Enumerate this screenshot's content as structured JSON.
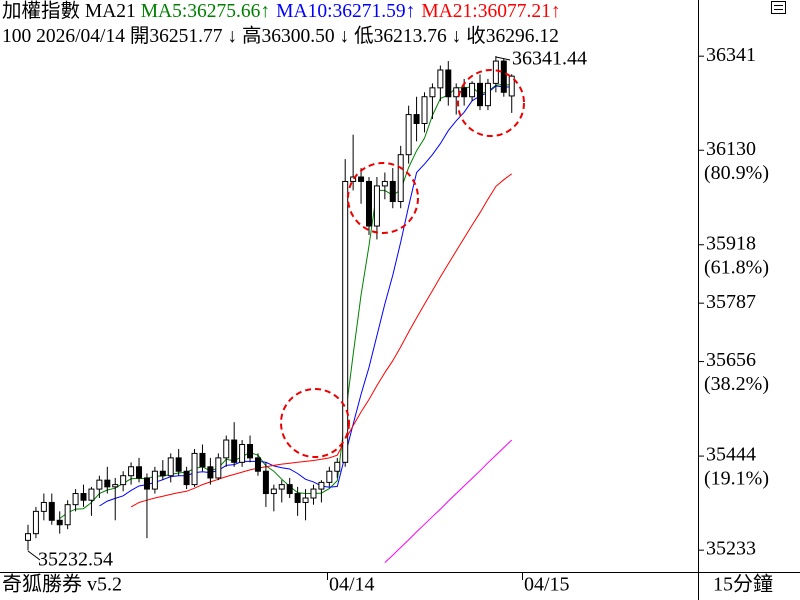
{
  "chart_data": {
    "type": "candlestick",
    "title": "加權指數",
    "indicator": "MA21",
    "trend_arrow": "↑",
    "info": "100 2026/04/14 開36251.77 ↓ 高36300.50 ↓ 低36213.76 ↓ 收36296.12",
    "footer_left": "奇狐勝券 v5.2",
    "period": "15分鐘",
    "x_labels": [
      "04/14",
      "04/15"
    ],
    "annotations": [
      "36341.44",
      "35232.54"
    ],
    "ylim": [
      35184,
      36467
    ],
    "yticks": [
      36341,
      36130,
      35918,
      35787,
      35656,
      35444,
      35233
    ],
    "fib_labels": [
      {
        "value": 36130,
        "label": "(80.9%)"
      },
      {
        "value": 35918,
        "label": "(61.8%)"
      },
      {
        "value": 35656,
        "label": "(38.2%)"
      },
      {
        "value": 35444,
        "label": "(19.1%)"
      }
    ],
    "up_color": "#ffffff",
    "down_color": "#000000",
    "open": [
      35255,
      35270,
      35320,
      35340,
      35300,
      35290,
      35335,
      35360,
      35345,
      35370,
      35390,
      35375,
      35380,
      35400,
      35420,
      35395,
      35370,
      35410,
      35400,
      35440,
      35410,
      35380,
      35450,
      35420,
      35395,
      35440,
      35480,
      35430,
      35470,
      35440,
      35410,
      35360,
      35370,
      35380,
      35360,
      35340,
      35350,
      35370,
      35385,
      35410,
      35430,
      36060,
      36070,
      36060,
      35960,
      36050,
      36060,
      36015,
      36120,
      36210,
      36190,
      36250,
      36270,
      36310,
      36250,
      36270,
      36250,
      36280,
      36230,
      36280,
      36330,
      36251.77
    ],
    "high": [
      35290,
      35330,
      35360,
      35360,
      35320,
      35345,
      35370,
      35380,
      35375,
      35400,
      35420,
      35395,
      35410,
      35430,
      35440,
      35405,
      35420,
      35435,
      35450,
      35460,
      35420,
      35460,
      35470,
      35440,
      35450,
      35490,
      35520,
      35480,
      35490,
      35450,
      35430,
      35380,
      35390,
      35395,
      35375,
      35370,
      35380,
      35390,
      35420,
      35440,
      36110,
      36165,
      36090,
      36070,
      36070,
      36080,
      36090,
      36140,
      36230,
      36250,
      36260,
      36280,
      36320,
      36330,
      36280,
      36290,
      36285,
      36300,
      36290,
      36341.44,
      36335,
      36300.5
    ],
    "low": [
      35232.54,
      35260,
      35300,
      35290,
      35270,
      35280,
      35320,
      35330,
      35310,
      35350,
      35360,
      35300,
      35365,
      35380,
      35385,
      35260,
      35360,
      35390,
      35385,
      35400,
      35370,
      35375,
      35410,
      35380,
      35390,
      35420,
      35420,
      35420,
      35430,
      35400,
      35330,
      35320,
      35340,
      35350,
      35310,
      35300,
      35335,
      35340,
      35375,
      35395,
      35420,
      36040,
      36010,
      35940,
      35930,
      36020,
      36000,
      36000,
      36100,
      36150,
      36170,
      36200,
      36240,
      36230,
      36210,
      36230,
      36240,
      36220,
      36220,
      36260,
      36250,
      36213.76
    ],
    "close": [
      35270,
      35320,
      35340,
      35300,
      35290,
      35335,
      35360,
      35345,
      35370,
      35390,
      35375,
      35380,
      35400,
      35420,
      35395,
      35370,
      35410,
      35400,
      35440,
      35410,
      35380,
      35450,
      35420,
      35395,
      35440,
      35480,
      35430,
      35470,
      35440,
      35410,
      35360,
      35370,
      35380,
      35360,
      35340,
      35350,
      35370,
      35385,
      35410,
      35430,
      36060,
      36070,
      36060,
      35960,
      36050,
      36060,
      36015,
      36120,
      36210,
      36190,
      36250,
      36270,
      36310,
      36250,
      36270,
      36250,
      36280,
      36230,
      36280,
      36330,
      36260,
      36296.12
    ],
    "series": [
      {
        "name": "MA5:36275.66",
        "color": "#008000",
        "values": [
          null,
          null,
          null,
          null,
          35304,
          35317,
          35325,
          35326,
          35340,
          35360,
          35368,
          35372,
          35383,
          35393,
          35394,
          35393,
          35399,
          35399,
          35403,
          35406,
          35408,
          35416,
          35420,
          35411,
          35417,
          35437,
          35433,
          35443,
          35452,
          35446,
          35422,
          35410,
          35392,
          35376,
          35362,
          35360,
          35360,
          35361,
          35371,
          35389,
          35531,
          35671,
          35806,
          35916,
          36040,
          36040,
          36029,
          36041,
          36091,
          36129,
          36157,
          36208,
          36246,
          36254,
          36270,
          36270,
          36272,
          36256,
          36262,
          36276,
          36278,
          36275.66
        ]
      },
      {
        "name": "MA10:36271.59",
        "color": "#0000ff",
        "values": [
          null,
          null,
          null,
          null,
          null,
          null,
          null,
          null,
          null,
          35332,
          35343,
          35349,
          35355,
          35367,
          35377,
          35380,
          35385,
          35391,
          35398,
          35400,
          35400,
          35407,
          35409,
          35407,
          35412,
          35423,
          35425,
          35432,
          35432,
          35432,
          35430,
          35422,
          35418,
          35415,
          35405,
          35392,
          35386,
          35377,
          35374,
          35376,
          35446,
          35515,
          35583,
          35643,
          35714,
          35785,
          35850,
          35924,
          36004,
          36080,
          36099,
          36120,
          36145,
          36174,
          36196,
          36215,
          36241,
          36252,
          36259,
          36274,
          36272,
          36271.59
        ]
      },
      {
        "name": "MA21:36077.21",
        "color": "#ff0000",
        "values": [
          null,
          null,
          null,
          null,
          null,
          null,
          null,
          null,
          null,
          null,
          null,
          null,
          null,
          35330,
          35340,
          35345,
          35350,
          35354,
          35358,
          35362,
          35365,
          35372,
          35380,
          35386,
          35392,
          35398,
          35403,
          35408,
          35413,
          35417,
          35420,
          35423,
          35426,
          35428,
          35430,
          35432,
          35434,
          35437,
          35440,
          35446,
          35480,
          35512,
          35543,
          35571,
          35602,
          35631,
          35658,
          35689,
          35722,
          35754,
          35785,
          35815,
          35846,
          35875,
          35904,
          35933,
          35962,
          35990,
          36020,
          36049,
          36064,
          36077.21
        ]
      },
      {
        "color": "#ff00ff",
        "values": [
          null,
          null,
          null,
          null,
          null,
          null,
          null,
          null,
          null,
          null,
          null,
          null,
          null,
          null,
          null,
          null,
          null,
          null,
          null,
          null,
          null,
          null,
          null,
          null,
          null,
          null,
          null,
          null,
          null,
          null,
          null,
          null,
          null,
          null,
          null,
          null,
          null,
          null,
          null,
          null,
          null,
          null,
          null,
          null,
          null,
          35205,
          35222,
          35239,
          35256,
          35274,
          35291,
          35308,
          35325,
          35343,
          35360,
          35377,
          35394,
          35411,
          35429,
          35446,
          35463,
          35480
        ]
      }
    ]
  }
}
